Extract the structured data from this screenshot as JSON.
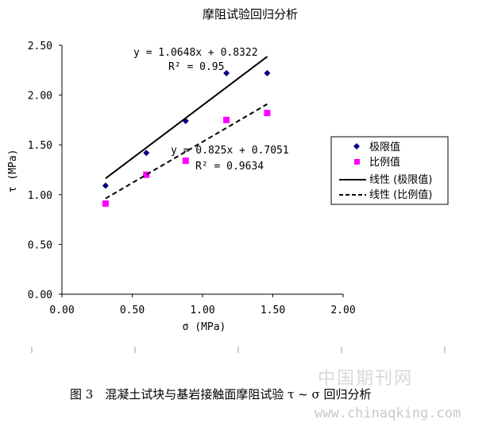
{
  "chart_data": {
    "type": "scatter",
    "title": "摩阻试验回归分析",
    "xlabel": "σ (MPa)",
    "ylabel": "τ (MPa)",
    "xlim": [
      0,
      2.0
    ],
    "ylim": [
      0,
      2.5
    ],
    "x_ticks": [
      "0.00",
      "0.50",
      "1.00",
      "1.50",
      "2.00"
    ],
    "y_ticks": [
      "0.00",
      "0.50",
      "1.00",
      "1.50",
      "2.00",
      "2.50"
    ],
    "grid": false,
    "legend_position": "right",
    "series": [
      {
        "name": "极限值",
        "kind": "scatter",
        "marker": "diamond",
        "color": "#000080",
        "x": [
          0.31,
          0.6,
          0.88,
          1.17,
          1.46
        ],
        "y": [
          1.09,
          1.42,
          1.74,
          2.22,
          2.22
        ]
      },
      {
        "name": "比例值",
        "kind": "scatter",
        "marker": "square",
        "color": "#ff00ff",
        "x": [
          0.31,
          0.6,
          0.88,
          1.17,
          1.46
        ],
        "y": [
          0.91,
          1.2,
          1.34,
          1.75,
          1.82
        ]
      },
      {
        "name": "线性 (极限值)",
        "kind": "line",
        "style": "solid",
        "color": "#000000",
        "x": [
          0.31,
          1.46
        ],
        "y": [
          1.1623,
          2.3868
        ]
      },
      {
        "name": "线性 (比例值)",
        "kind": "line",
        "style": "dashed",
        "color": "#000000",
        "x": [
          0.31,
          1.46
        ],
        "y": [
          0.9609,
          1.9096
        ]
      }
    ],
    "annotations": [
      {
        "line1": "y = 1.0648x + 0.8322",
        "line2": "R² = 0.95"
      },
      {
        "line1": "y = 0.825x + 0.7051",
        "line2": "R² = 0.9634"
      }
    ]
  },
  "caption": "图 3　混凝土试块与基岩接触面摩阻试验 τ ~ σ 回归分析",
  "watermark": {
    "line1": "中国期刊网",
    "line2": "www.chinaqking.com"
  }
}
